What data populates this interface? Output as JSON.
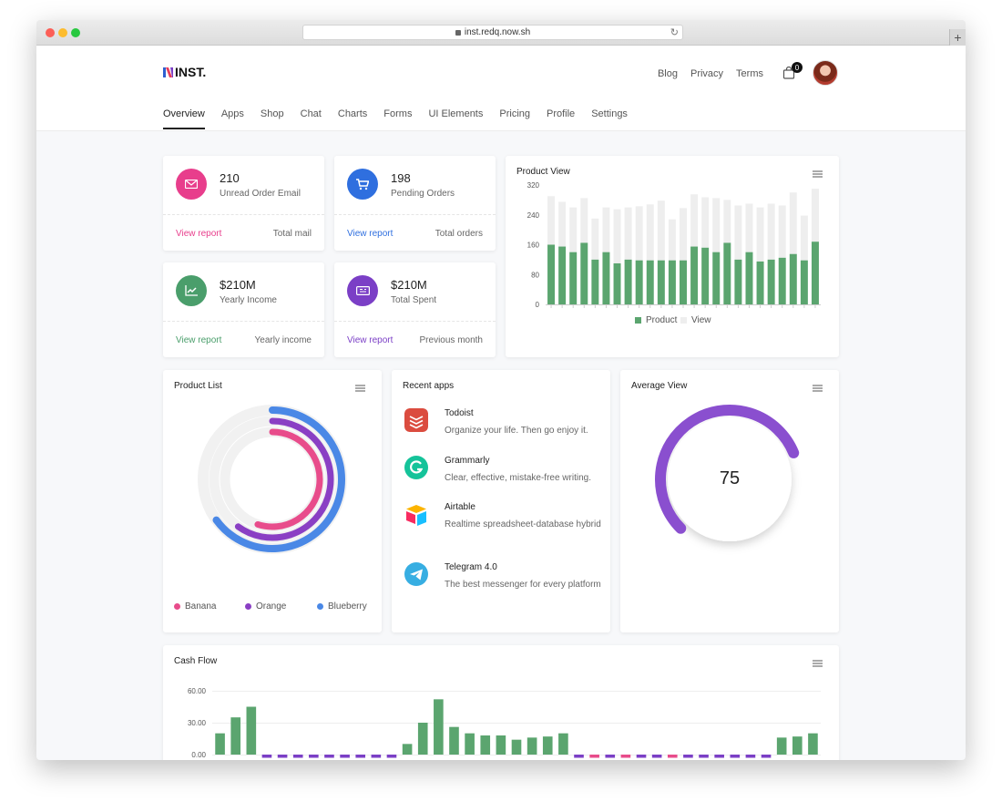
{
  "browser": {
    "url": "inst.redq.now.sh"
  },
  "header": {
    "logo": "INST.",
    "links": [
      "Blog",
      "Privacy",
      "Terms"
    ],
    "cart_count": "0",
    "nav": [
      "Overview",
      "Apps",
      "Shop",
      "Chat",
      "Charts",
      "Forms",
      "UI Elements",
      "Pricing",
      "Profile",
      "Settings"
    ]
  },
  "stats": [
    {
      "value": "210",
      "label": "Unread Order Email",
      "link": "View report",
      "note": "Total mail",
      "color": "#e83e8c",
      "icon": "mail-icon"
    },
    {
      "value": "198",
      "label": "Pending Orders",
      "link": "View report",
      "note": "Total orders",
      "color": "#2f6fdf",
      "icon": "cart-icon"
    },
    {
      "value": "$210M",
      "label": "Yearly Income",
      "link": "View report",
      "note": "Yearly income",
      "color": "#4a9e6b",
      "icon": "trend-icon"
    },
    {
      "value": "$210M",
      "label": "Total Spent",
      "link": "View report",
      "note": "Previous month",
      "color": "#7b3fc6",
      "icon": "ticket-icon"
    }
  ],
  "product_view": {
    "title": "Product View",
    "legend": [
      "Product",
      "View"
    ],
    "colors": [
      "#5ba56f",
      "#eeeeee"
    ]
  },
  "product_list": {
    "title": "Product List",
    "legend": [
      "Banana",
      "Orange",
      "Blueberry"
    ],
    "colors": [
      "#e84c8b",
      "#8a3fc4",
      "#4a88e6"
    ]
  },
  "recent_apps": {
    "title": "Recent apps",
    "items": [
      {
        "name": "Todoist",
        "desc": "Organize your life. Then go enjoy it.",
        "icon": "todoist-icon"
      },
      {
        "name": "Grammarly",
        "desc": "Clear, effective, mistake-free writing.",
        "icon": "grammarly-icon"
      },
      {
        "name": "Airtable",
        "desc": "Realtime spreadsheet-database hybrid",
        "icon": "airtable-icon"
      },
      {
        "name": "Telegram 4.0",
        "desc": "The best messenger for every platform",
        "icon": "telegram-icon"
      }
    ]
  },
  "average_view": {
    "title": "Average View",
    "value": "75"
  },
  "cash_flow": {
    "title": "Cash Flow"
  },
  "chart_data": [
    {
      "type": "bar",
      "title": "Product View",
      "stacked": true,
      "ylim": [
        0,
        320
      ],
      "yticks": [
        "320",
        "240",
        "160",
        "80",
        "0"
      ],
      "series": [
        {
          "name": "Product",
          "values": [
            160,
            155,
            140,
            165,
            120,
            140,
            110,
            120,
            118,
            118,
            118,
            118,
            118,
            155,
            152,
            140,
            165,
            120,
            140,
            115,
            120,
            125,
            135,
            118,
            168
          ]
        },
        {
          "name": "View",
          "values": [
            130,
            120,
            120,
            120,
            110,
            120,
            145,
            140,
            145,
            150,
            160,
            110,
            140,
            140,
            135,
            145,
            115,
            145,
            130,
            145,
            150,
            140,
            165,
            120,
            142
          ]
        }
      ],
      "legend_position": "bottom"
    },
    {
      "type": "pie",
      "title": "Product List",
      "style": "radial-bar",
      "series": [
        {
          "name": "Banana",
          "value": 55
        },
        {
          "name": "Orange",
          "value": 60
        },
        {
          "name": "Blueberry",
          "value": 65
        }
      ]
    },
    {
      "type": "pie",
      "title": "Average View",
      "style": "gauge",
      "value": 75
    },
    {
      "type": "bar",
      "title": "Cash Flow",
      "ylim": [
        0,
        60
      ],
      "yticks": [
        "60.00",
        "30.00",
        "0.00"
      ],
      "values": [
        20,
        35,
        45,
        -3,
        -3,
        -3,
        -3,
        -3,
        -3,
        -3,
        -3,
        -3,
        10,
        30,
        52,
        26,
        20,
        18,
        18,
        14,
        16,
        17,
        20,
        -3,
        -3,
        -3,
        -3,
        -3,
        -3,
        -3,
        -3,
        -3,
        -3,
        -3,
        -3,
        -3,
        16,
        17,
        20
      ],
      "colors": {
        "positive": "#5ba56f",
        "negative": "#7b3fc6",
        "accent": "#e84c8b"
      }
    }
  ]
}
